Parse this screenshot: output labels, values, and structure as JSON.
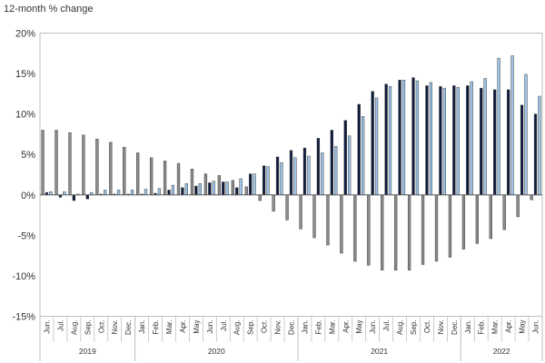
{
  "chart_data": {
    "type": "bar",
    "title": "",
    "ylabel": "12-month % change",
    "ylim": [
      -15,
      20
    ],
    "yticks": [
      -15,
      -10,
      -5,
      0,
      5,
      10,
      15,
      20
    ],
    "ytick_format": "{v}%",
    "grid": false,
    "legend": "none",
    "categories": [
      "Jun.",
      "Jul.",
      "Aug.",
      "Sep.",
      "Oct.",
      "Nov.",
      "Dec.",
      "Jan.",
      "Feb.",
      "Mar.",
      "Apr.",
      "May",
      "Jun.",
      "Jul.",
      "Aug.",
      "Sep.",
      "Oct.",
      "Nov.",
      "Dec.",
      "Jan.",
      "Feb.",
      "Mar.",
      "Apr.",
      "May",
      "Jun.",
      "Jul.",
      "Aug.",
      "Sep.",
      "Oct.",
      "Nov.",
      "Dec.",
      "Jan.",
      "Feb.",
      "Mar.",
      "Apr.",
      "May",
      "Jun."
    ],
    "year_groups": [
      {
        "label": "2019",
        "count": 7
      },
      {
        "label": "2020",
        "count": 12
      },
      {
        "label": "2021",
        "count": 12
      },
      {
        "label": "2022",
        "count": 6
      }
    ],
    "series": [
      {
        "color": "#8c8c8c",
        "values": [
          8.0,
          8.0,
          7.7,
          7.4,
          6.9,
          6.5,
          5.9,
          5.2,
          4.6,
          4.2,
          3.9,
          3.2,
          2.6,
          2.4,
          1.8,
          1.0,
          -0.7,
          -2.0,
          -3.1,
          -4.2,
          -5.3,
          -6.2,
          -7.2,
          -8.2,
          -8.7,
          -9.3,
          -9.3,
          -9.3,
          -8.6,
          -8.2,
          -7.7,
          -6.7,
          -6.0,
          -5.4,
          -4.3,
          -2.7,
          -0.6
        ]
      },
      {
        "color": "#0d1b3e",
        "values": [
          0.3,
          -0.3,
          -0.7,
          -0.5,
          0.1,
          0.1,
          0.1,
          0.1,
          0.2,
          0.6,
          0.9,
          1.1,
          1.5,
          1.6,
          0.9,
          2.6,
          3.6,
          4.7,
          5.5,
          5.8,
          7.0,
          8.0,
          9.2,
          11.2,
          12.8,
          13.7,
          14.2,
          14.5,
          13.5,
          13.4,
          13.5,
          13.5,
          13.2,
          13.0,
          13.0,
          11.1,
          10.0
        ]
      },
      {
        "color": "#9dc3e6",
        "values": [
          0.4,
          0.4,
          0.1,
          0.3,
          0.6,
          0.6,
          0.6,
          0.7,
          0.8,
          1.2,
          1.4,
          1.4,
          1.7,
          1.6,
          2.0,
          2.6,
          3.5,
          4.0,
          4.6,
          4.8,
          5.2,
          6.0,
          7.3,
          9.7,
          12.0,
          13.4,
          14.2,
          14.1,
          13.9,
          13.2,
          13.3,
          14.0,
          14.4,
          16.9,
          17.2,
          14.9,
          12.2
        ]
      }
    ]
  }
}
